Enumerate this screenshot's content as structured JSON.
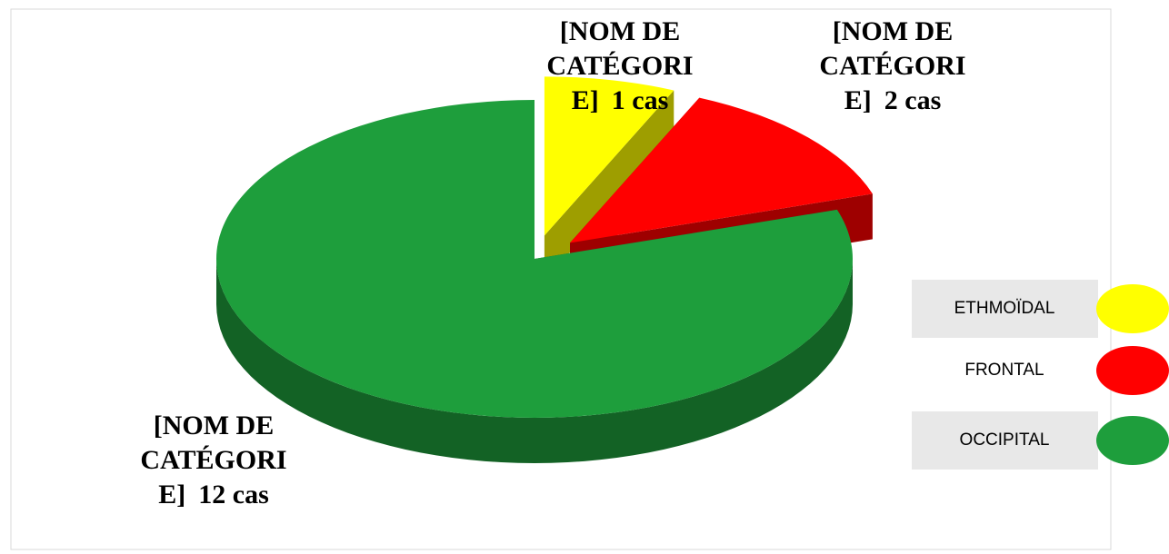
{
  "chart_data": {
    "type": "pie3d",
    "categories": [
      "ETHMOÏDAL",
      "FRONTAL",
      "OCCIPITAL"
    ],
    "values": [
      1,
      2,
      12
    ],
    "value_labels": [
      "1 cas",
      "2 cas",
      "12 cas"
    ],
    "data_label_category": "[NOM DE CATÉGORIE]",
    "colors": [
      "#ffff00",
      "#ff0000",
      "#1e9e3c"
    ],
    "legend": "right"
  }
}
